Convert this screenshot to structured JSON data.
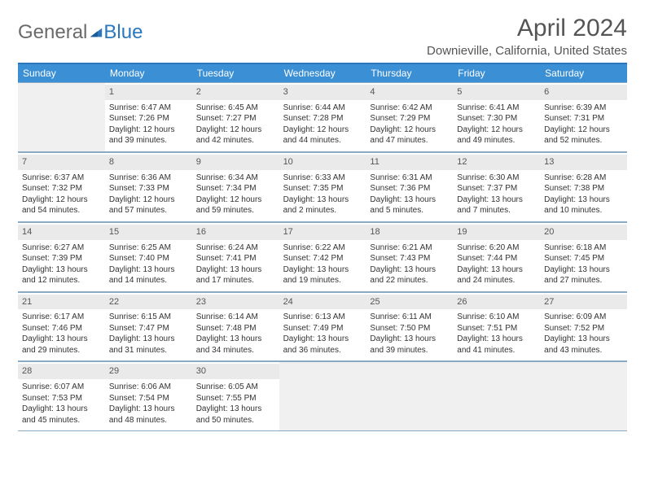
{
  "brand": {
    "general": "General",
    "blue": "Blue",
    "accent": "#2a77bd"
  },
  "header": {
    "month_title": "April 2024",
    "location": "Downieville, California, United States"
  },
  "dayhead_bg": "#3b8fd4",
  "daynum_bg": "#eaeaea",
  "cell_border": "#8aa9c2",
  "weekdays": [
    "Sunday",
    "Monday",
    "Tuesday",
    "Wednesday",
    "Thursday",
    "Friday",
    "Saturday"
  ],
  "start_offset": 1,
  "days": [
    {
      "n": 1,
      "sunrise": "6:47 AM",
      "sunset": "7:26 PM",
      "daylight": "12 hours and 39 minutes."
    },
    {
      "n": 2,
      "sunrise": "6:45 AM",
      "sunset": "7:27 PM",
      "daylight": "12 hours and 42 minutes."
    },
    {
      "n": 3,
      "sunrise": "6:44 AM",
      "sunset": "7:28 PM",
      "daylight": "12 hours and 44 minutes."
    },
    {
      "n": 4,
      "sunrise": "6:42 AM",
      "sunset": "7:29 PM",
      "daylight": "12 hours and 47 minutes."
    },
    {
      "n": 5,
      "sunrise": "6:41 AM",
      "sunset": "7:30 PM",
      "daylight": "12 hours and 49 minutes."
    },
    {
      "n": 6,
      "sunrise": "6:39 AM",
      "sunset": "7:31 PM",
      "daylight": "12 hours and 52 minutes."
    },
    {
      "n": 7,
      "sunrise": "6:37 AM",
      "sunset": "7:32 PM",
      "daylight": "12 hours and 54 minutes."
    },
    {
      "n": 8,
      "sunrise": "6:36 AM",
      "sunset": "7:33 PM",
      "daylight": "12 hours and 57 minutes."
    },
    {
      "n": 9,
      "sunrise": "6:34 AM",
      "sunset": "7:34 PM",
      "daylight": "12 hours and 59 minutes."
    },
    {
      "n": 10,
      "sunrise": "6:33 AM",
      "sunset": "7:35 PM",
      "daylight": "13 hours and 2 minutes."
    },
    {
      "n": 11,
      "sunrise": "6:31 AM",
      "sunset": "7:36 PM",
      "daylight": "13 hours and 5 minutes."
    },
    {
      "n": 12,
      "sunrise": "6:30 AM",
      "sunset": "7:37 PM",
      "daylight": "13 hours and 7 minutes."
    },
    {
      "n": 13,
      "sunrise": "6:28 AM",
      "sunset": "7:38 PM",
      "daylight": "13 hours and 10 minutes."
    },
    {
      "n": 14,
      "sunrise": "6:27 AM",
      "sunset": "7:39 PM",
      "daylight": "13 hours and 12 minutes."
    },
    {
      "n": 15,
      "sunrise": "6:25 AM",
      "sunset": "7:40 PM",
      "daylight": "13 hours and 14 minutes."
    },
    {
      "n": 16,
      "sunrise": "6:24 AM",
      "sunset": "7:41 PM",
      "daylight": "13 hours and 17 minutes."
    },
    {
      "n": 17,
      "sunrise": "6:22 AM",
      "sunset": "7:42 PM",
      "daylight": "13 hours and 19 minutes."
    },
    {
      "n": 18,
      "sunrise": "6:21 AM",
      "sunset": "7:43 PM",
      "daylight": "13 hours and 22 minutes."
    },
    {
      "n": 19,
      "sunrise": "6:20 AM",
      "sunset": "7:44 PM",
      "daylight": "13 hours and 24 minutes."
    },
    {
      "n": 20,
      "sunrise": "6:18 AM",
      "sunset": "7:45 PM",
      "daylight": "13 hours and 27 minutes."
    },
    {
      "n": 21,
      "sunrise": "6:17 AM",
      "sunset": "7:46 PM",
      "daylight": "13 hours and 29 minutes."
    },
    {
      "n": 22,
      "sunrise": "6:15 AM",
      "sunset": "7:47 PM",
      "daylight": "13 hours and 31 minutes."
    },
    {
      "n": 23,
      "sunrise": "6:14 AM",
      "sunset": "7:48 PM",
      "daylight": "13 hours and 34 minutes."
    },
    {
      "n": 24,
      "sunrise": "6:13 AM",
      "sunset": "7:49 PM",
      "daylight": "13 hours and 36 minutes."
    },
    {
      "n": 25,
      "sunrise": "6:11 AM",
      "sunset": "7:50 PM",
      "daylight": "13 hours and 39 minutes."
    },
    {
      "n": 26,
      "sunrise": "6:10 AM",
      "sunset": "7:51 PM",
      "daylight": "13 hours and 41 minutes."
    },
    {
      "n": 27,
      "sunrise": "6:09 AM",
      "sunset": "7:52 PM",
      "daylight": "13 hours and 43 minutes."
    },
    {
      "n": 28,
      "sunrise": "6:07 AM",
      "sunset": "7:53 PM",
      "daylight": "13 hours and 45 minutes."
    },
    {
      "n": 29,
      "sunrise": "6:06 AM",
      "sunset": "7:54 PM",
      "daylight": "13 hours and 48 minutes."
    },
    {
      "n": 30,
      "sunrise": "6:05 AM",
      "sunset": "7:55 PM",
      "daylight": "13 hours and 50 minutes."
    }
  ],
  "labels": {
    "sunrise": "Sunrise:",
    "sunset": "Sunset:",
    "daylight": "Daylight:"
  }
}
